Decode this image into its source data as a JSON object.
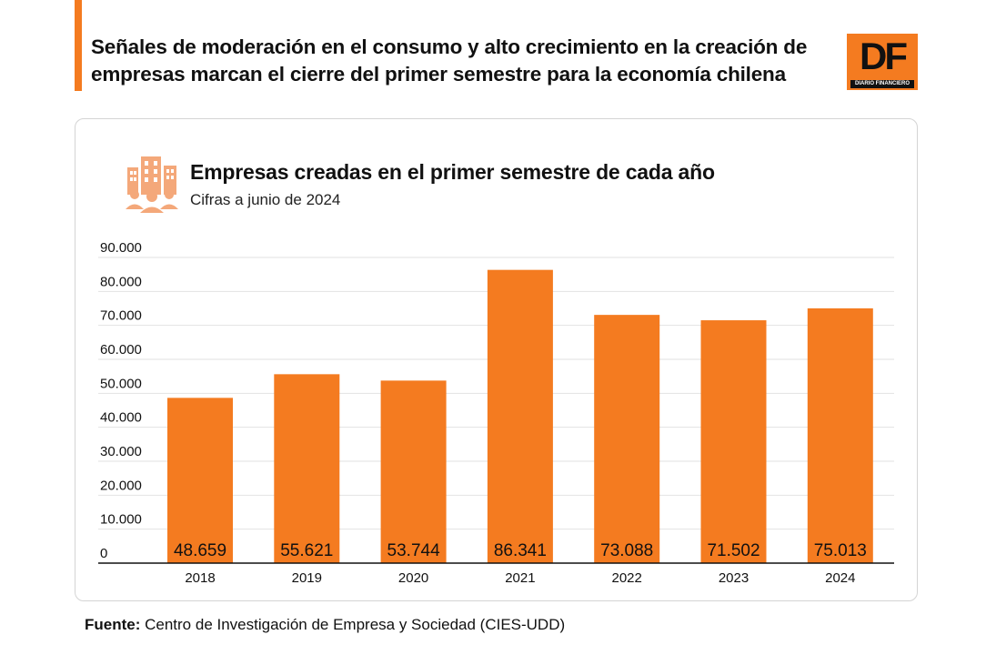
{
  "header": {
    "headline": "Señales de moderación en el consumo y alto crecimiento en la creación de empresas marcan el cierre del primer semestre para la economía chilena",
    "logo_text": "DF",
    "logo_subtext": "DIARIO FINANCIERO"
  },
  "chart_data": {
    "type": "bar",
    "title": "Empresas creadas en el primer semestre de cada año",
    "subtitle": "Cifras a junio de 2024",
    "categories": [
      "2018",
      "2019",
      "2020",
      "2021",
      "2022",
      "2023",
      "2024"
    ],
    "values": [
      48659,
      55621,
      53744,
      86341,
      73088,
      71502,
      75013
    ],
    "value_labels": [
      "48.659",
      "55.621",
      "53.744",
      "86.341",
      "73.088",
      "71.502",
      "75.013"
    ],
    "y_ticks": [
      0,
      10000,
      20000,
      30000,
      40000,
      50000,
      60000,
      70000,
      80000,
      90000
    ],
    "y_tick_labels": [
      "0",
      "10.000",
      "20.000",
      "30.000",
      "40.000",
      "50.000",
      "60.000",
      "70.000",
      "80.000",
      "90.000"
    ],
    "ylim": [
      0,
      90000
    ],
    "xlabel": "",
    "ylabel": "",
    "grid": true,
    "bar_color": "#f47b20",
    "icon": "buildings-people-icon"
  },
  "footer": {
    "source_label": "Fuente:",
    "source_text": " Centro de Investigación de Empresa y Sociedad (CIES-UDD)"
  }
}
